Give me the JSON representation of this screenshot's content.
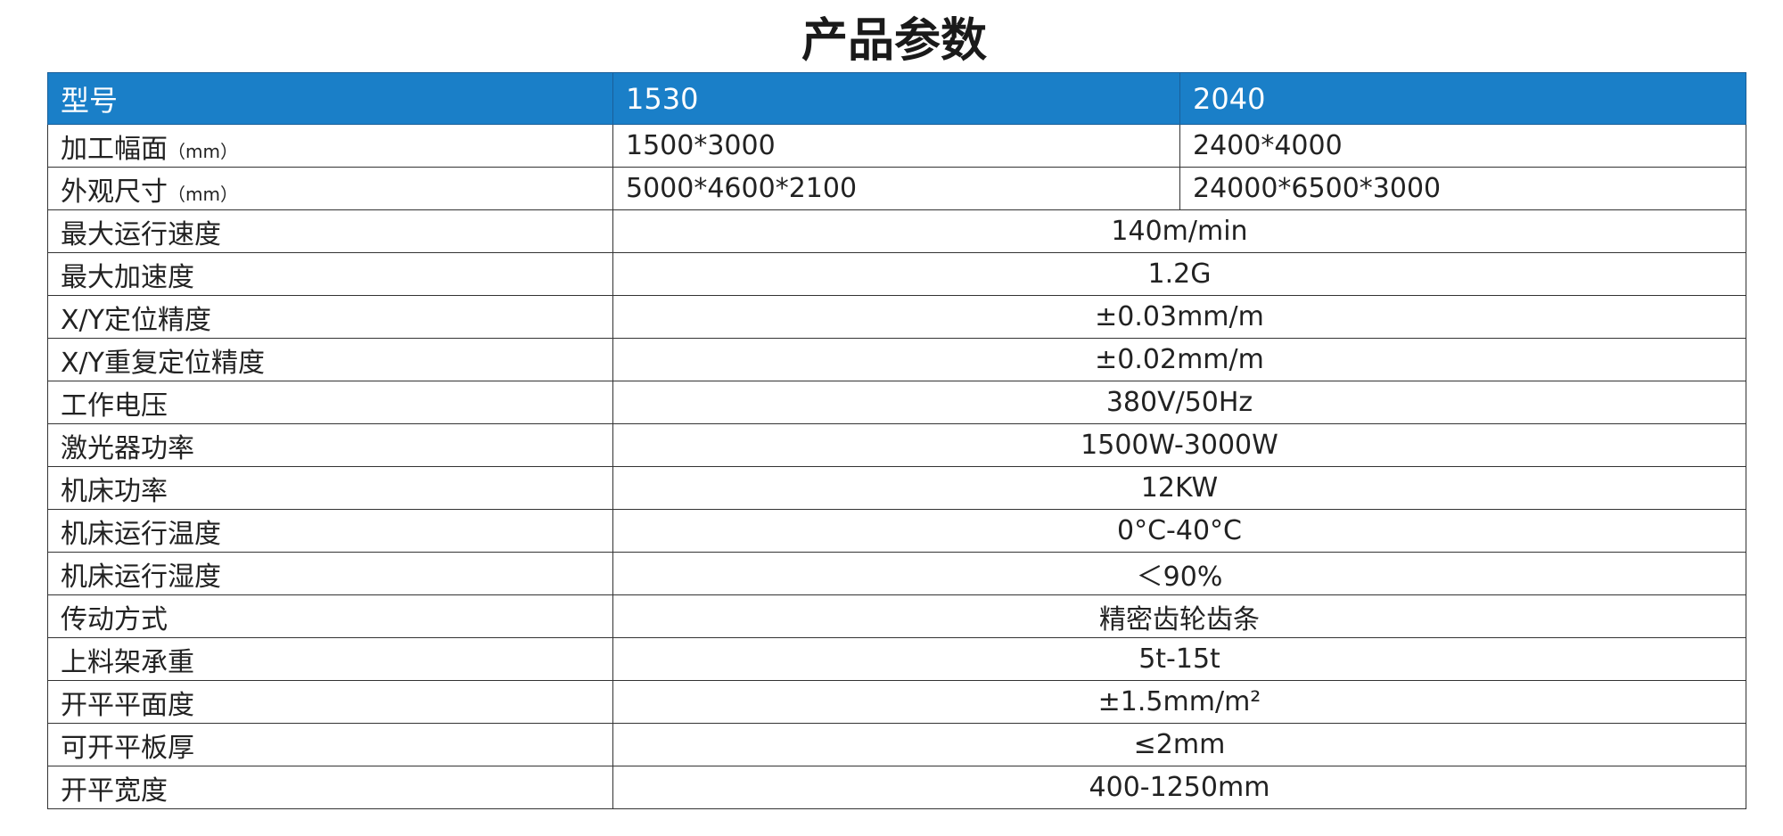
{
  "header": {
    "title": "产品参数"
  },
  "table": {
    "columns": [
      "型号",
      "1530",
      "2040"
    ],
    "rows": [
      {
        "label": "加工幅面",
        "unit": "（mm）",
        "values": [
          "1500*3000",
          "2400*4000"
        ]
      },
      {
        "label": "外观尺寸",
        "unit": "（mm）",
        "values": [
          "5000*4600*2100",
          "24000*6500*3000"
        ]
      },
      {
        "label": "最大运行速度",
        "values": [
          "140m/min"
        ]
      },
      {
        "label": "最大加速度",
        "values": [
          "1.2G"
        ]
      },
      {
        "label": "X/Y定位精度",
        "values": [
          "±0.03mm/m"
        ]
      },
      {
        "label": "X/Y重复定位精度",
        "values": [
          "±0.02mm/m"
        ]
      },
      {
        "label": "工作电压",
        "values": [
          "380V/50Hz"
        ]
      },
      {
        "label": "激光器功率",
        "values": [
          "1500W-3000W"
        ]
      },
      {
        "label": "机床功率",
        "values": [
          "12KW"
        ]
      },
      {
        "label": "机床运行温度",
        "values": [
          "0°C-40°C"
        ]
      },
      {
        "label": "机床运行湿度",
        "values": [
          "＜90%"
        ]
      },
      {
        "label": "传动方式",
        "values": [
          "精密齿轮齿条"
        ]
      },
      {
        "label": "上料架承重",
        "values": [
          "5t-15t"
        ]
      },
      {
        "label": "开平平面度",
        "values": [
          "±1.5mm/m²"
        ]
      },
      {
        "label": "可开平板厚",
        "values": [
          "≤2mm"
        ]
      },
      {
        "label": "开平宽度",
        "values": [
          "400-1250mm"
        ]
      }
    ]
  }
}
